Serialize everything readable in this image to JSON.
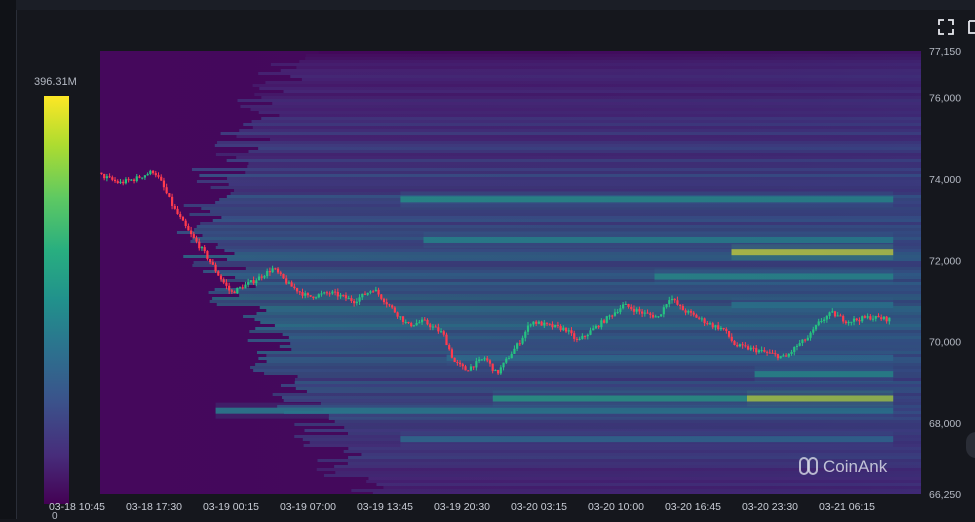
{
  "colorbar": {
    "max_label": "396.31M",
    "min_label": "0"
  },
  "watermark": {
    "text": "CoinAnk"
  },
  "icons": {
    "expand": "expand-icon",
    "menu": "square-icon"
  },
  "colors": {
    "up": "#26c281",
    "down": "#ff3b4e",
    "grid": "#2b2f3a"
  },
  "chart_data": {
    "type": "heatmap",
    "title": "",
    "x_labels": [
      "03-18 10:45",
      "03-18 17:30",
      "03-19 00:15",
      "03-19 07:00",
      "03-19 13:45",
      "03-19 20:30",
      "03-20 03:15",
      "03-20 10:00",
      "03-20 16:45",
      "03-20 23:30",
      "03-21 06:15"
    ],
    "y_ticks": [
      66250,
      68000,
      70000,
      72000,
      74000,
      76000,
      77150
    ],
    "y_tick_labels": [
      "66,250",
      "68,000",
      "70,000",
      "72,000",
      "74,000",
      "76,000",
      "77,150"
    ],
    "ylim": [
      66250,
      77150
    ],
    "colorbar_range": [
      0,
      396310000
    ],
    "colorscale": [
      "#440154",
      "#472d7b",
      "#3b528b",
      "#2c728e",
      "#21918c",
      "#28ae80",
      "#5ec962",
      "#addc30",
      "#fde725"
    ],
    "price_path": [
      {
        "t": 0.0,
        "p": 74400
      },
      {
        "t": 0.3,
        "p": 74100
      },
      {
        "t": 0.55,
        "p": 73900
      },
      {
        "t": 0.75,
        "p": 74000
      },
      {
        "t": 1.0,
        "p": 74200
      },
      {
        "t": 1.1,
        "p": 73900
      },
      {
        "t": 1.25,
        "p": 73300
      },
      {
        "t": 1.45,
        "p": 72700
      },
      {
        "t": 1.65,
        "p": 72200
      },
      {
        "t": 1.85,
        "p": 71600
      },
      {
        "t": 2.0,
        "p": 71200
      },
      {
        "t": 2.3,
        "p": 71500
      },
      {
        "t": 2.55,
        "p": 71800
      },
      {
        "t": 2.75,
        "p": 71400
      },
      {
        "t": 3.0,
        "p": 71100
      },
      {
        "t": 3.3,
        "p": 71200
      },
      {
        "t": 3.6,
        "p": 71000
      },
      {
        "t": 3.85,
        "p": 71300
      },
      {
        "t": 4.0,
        "p": 71000
      },
      {
        "t": 4.15,
        "p": 70700
      },
      {
        "t": 4.3,
        "p": 70400
      },
      {
        "t": 4.5,
        "p": 70500
      },
      {
        "t": 4.75,
        "p": 70200
      },
      {
        "t": 4.9,
        "p": 69500
      },
      {
        "t": 5.05,
        "p": 69300
      },
      {
        "t": 5.3,
        "p": 69600
      },
      {
        "t": 5.45,
        "p": 69200
      },
      {
        "t": 5.6,
        "p": 69600
      },
      {
        "t": 5.75,
        "p": 70000
      },
      {
        "t": 5.9,
        "p": 70500
      },
      {
        "t": 6.1,
        "p": 70400
      },
      {
        "t": 6.35,
        "p": 70300
      },
      {
        "t": 6.5,
        "p": 70000
      },
      {
        "t": 6.7,
        "p": 70300
      },
      {
        "t": 6.9,
        "p": 70600
      },
      {
        "t": 7.1,
        "p": 70900
      },
      {
        "t": 7.35,
        "p": 70700
      },
      {
        "t": 7.55,
        "p": 70600
      },
      {
        "t": 7.7,
        "p": 71100
      },
      {
        "t": 7.85,
        "p": 70800
      },
      {
        "t": 8.05,
        "p": 70600
      },
      {
        "t": 8.25,
        "p": 70400
      },
      {
        "t": 8.4,
        "p": 70300
      },
      {
        "t": 8.55,
        "p": 69900
      },
      {
        "t": 8.8,
        "p": 69800
      },
      {
        "t": 9.0,
        "p": 69700
      },
      {
        "t": 9.2,
        "p": 69600
      },
      {
        "t": 9.35,
        "p": 69900
      },
      {
        "t": 9.5,
        "p": 70100
      },
      {
        "t": 9.65,
        "p": 70500
      },
      {
        "t": 9.8,
        "p": 70700
      },
      {
        "t": 10.0,
        "p": 70500
      },
      {
        "t": 10.3,
        "p": 70600
      },
      {
        "t": 10.55,
        "p": 70550
      }
    ],
    "liquidity_bands": [
      {
        "price": 72200,
        "start": 8.5,
        "end": 10.6,
        "intensity": 1.0
      },
      {
        "price": 68600,
        "start": 8.7,
        "end": 10.6,
        "intensity": 0.95
      },
      {
        "price": 68600,
        "start": 5.4,
        "end": 8.7,
        "intensity": 0.6
      },
      {
        "price": 71600,
        "start": 7.5,
        "end": 10.6,
        "intensity": 0.55
      },
      {
        "price": 69200,
        "start": 8.8,
        "end": 10.6,
        "intensity": 0.55
      },
      {
        "price": 73500,
        "start": 4.2,
        "end": 10.6,
        "intensity": 0.55
      },
      {
        "price": 72500,
        "start": 4.5,
        "end": 10.6,
        "intensity": 0.5
      },
      {
        "price": 70900,
        "start": 8.5,
        "end": 10.6,
        "intensity": 0.45
      },
      {
        "price": 69600,
        "start": 4.8,
        "end": 10.6,
        "intensity": 0.4
      },
      {
        "price": 68300,
        "start": 1.8,
        "end": 10.6,
        "intensity": 0.45
      },
      {
        "price": 67600,
        "start": 4.2,
        "end": 10.6,
        "intensity": 0.38
      }
    ]
  }
}
